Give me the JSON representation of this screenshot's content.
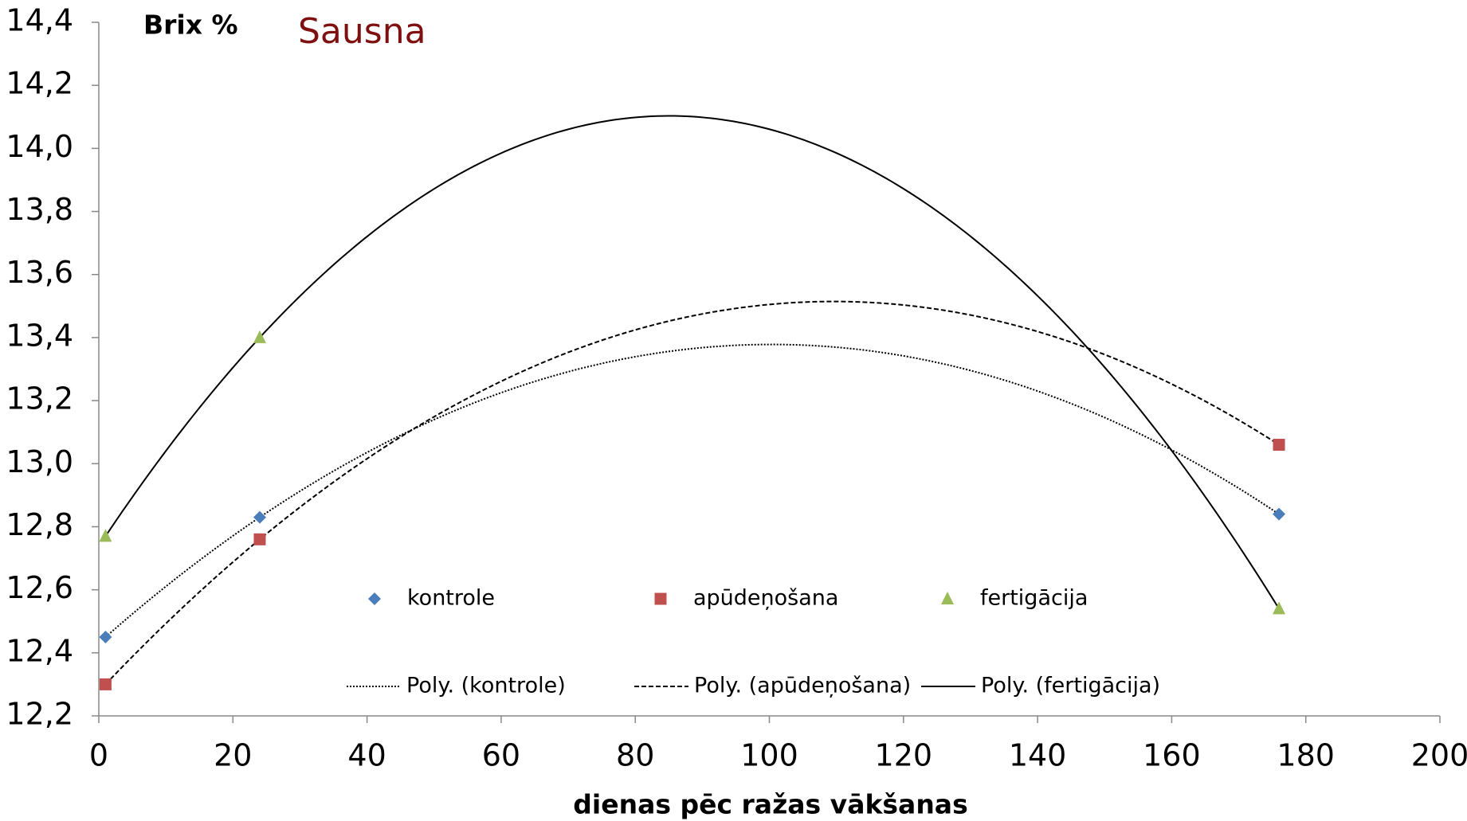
{
  "chart_data": {
    "type": "scatter",
    "title": "Sausna",
    "y_label": "Brix %",
    "x_label": "dienas pēc ražas vākšanas",
    "x": [
      1,
      24,
      176
    ],
    "series": [
      {
        "name": "kontrole",
        "color": "#4a7ebb",
        "marker": "diamond",
        "values": [
          12.45,
          12.83,
          12.84
        ]
      },
      {
        "name": "apūdeņošana",
        "color": "#c0504d",
        "marker": "square",
        "values": [
          12.3,
          12.76,
          13.06
        ]
      },
      {
        "name": "fertigācija",
        "color": "#9bbb59",
        "marker": "triangle",
        "values": [
          12.77,
          13.4,
          12.54
        ]
      }
    ],
    "trendlines": [
      {
        "name": "Poly. (kontrole)",
        "style": "dotted"
      },
      {
        "name": "Poly. (apūdeņošana)",
        "style": "dashed"
      },
      {
        "name": "Poly. (fertigācija)",
        "style": "solid"
      }
    ],
    "xlim": [
      0,
      200
    ],
    "xticks": [
      0,
      20,
      40,
      60,
      80,
      100,
      120,
      140,
      160,
      180,
      200
    ],
    "ylim": [
      12.2,
      14.4
    ],
    "yticks": [
      {
        "value": 12.2,
        "label": "12,2"
      },
      {
        "value": 12.4,
        "label": "12,4"
      },
      {
        "value": 12.6,
        "label": "12,6"
      },
      {
        "value": 12.8,
        "label": "12,8"
      },
      {
        "value": 13.0,
        "label": "13,0"
      },
      {
        "value": 13.2,
        "label": "13,2"
      },
      {
        "value": 13.4,
        "label": "13,4"
      },
      {
        "value": 13.6,
        "label": "13,6"
      },
      {
        "value": 13.8,
        "label": "13,8"
      },
      {
        "value": 14.0,
        "label": "14,0"
      },
      {
        "value": 14.2,
        "label": "14,2"
      },
      {
        "value": 14.4,
        "label": "14,4"
      }
    ],
    "grid": false
  }
}
